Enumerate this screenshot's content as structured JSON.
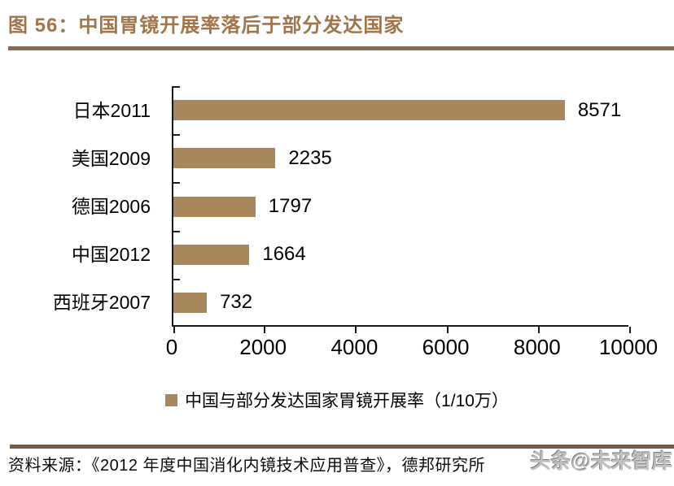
{
  "page": {
    "title": "图 56：中国胃镜开展率落后于部分发达国家",
    "source": "资料来源：《2012 年度中国消化内镜技术应用普查》，德邦研究所",
    "watermark": "头条@未来智库"
  },
  "colors": {
    "accent_brown": "#A0754B",
    "rule_top": "#8A6C4F",
    "rule_bottom": "#7B5C41",
    "bar": "#A8875D",
    "axis": "#1A1A1A",
    "watermark_gray": "#C0C0C0"
  },
  "chart_data": {
    "type": "bar",
    "orientation": "horizontal",
    "title": "中国与部分发达国家胃镜开展率（1/10万）",
    "categories": [
      "日本2011",
      "美国2009",
      "德国2006",
      "中国2012",
      "西班牙2007"
    ],
    "values": [
      8571,
      2235,
      1797,
      1664,
      732
    ],
    "value_labels": [
      "8571",
      "2235",
      "1797",
      "1664",
      "732"
    ],
    "xlim": [
      0,
      10000
    ],
    "x_tick_labels": [
      "0",
      "2000",
      "4000",
      "6000",
      "8000",
      "10000"
    ],
    "grid": false,
    "bar_color": "#A8875D",
    "legend": {
      "label": "中国与部分发达国家胃镜开展率（1/10万）",
      "position": "bottom",
      "marker_color": "#A8875D"
    }
  }
}
